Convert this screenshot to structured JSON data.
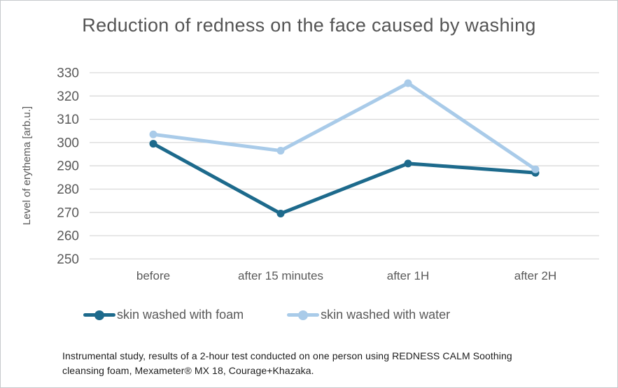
{
  "title": "Reduction of redness on the face caused by washing",
  "colors": {
    "foam": "#1d6a8c",
    "water": "#a9cbe9",
    "grid": "#d9d9d9",
    "axis_text": "#595959",
    "title_text": "#545454",
    "footnote_text": "#1c1c1c",
    "border": "#c6cacc"
  },
  "chart_data": {
    "type": "line",
    "categories": [
      "before",
      "after 15 minutes",
      "after 1H",
      "after 2H"
    ],
    "series": [
      {
        "name": "skin washed with foam",
        "color": "#1d6a8c",
        "values": [
          299.5,
          269.5,
          291,
          287
        ]
      },
      {
        "name": "skin washed with water",
        "color": "#a9cbe9",
        "values": [
          303.5,
          296.5,
          325.5,
          288.5
        ]
      }
    ],
    "title": "Reduction of redness on the face caused by washing",
    "xlabel": "",
    "ylabel": "Level of erythema [arb.u.]",
    "ylim": [
      250,
      330
    ],
    "ytick_step": 10,
    "grid": "horizontal",
    "legend_position": "bottom",
    "marker": "circle"
  },
  "footnote": {
    "line1": "Instrumental study, results of a 2-hour test conducted on one person using REDNESS CALM Soothing",
    "line2": "cleansing foam, Mexameter® MX 18, Courage+Khazaka."
  }
}
